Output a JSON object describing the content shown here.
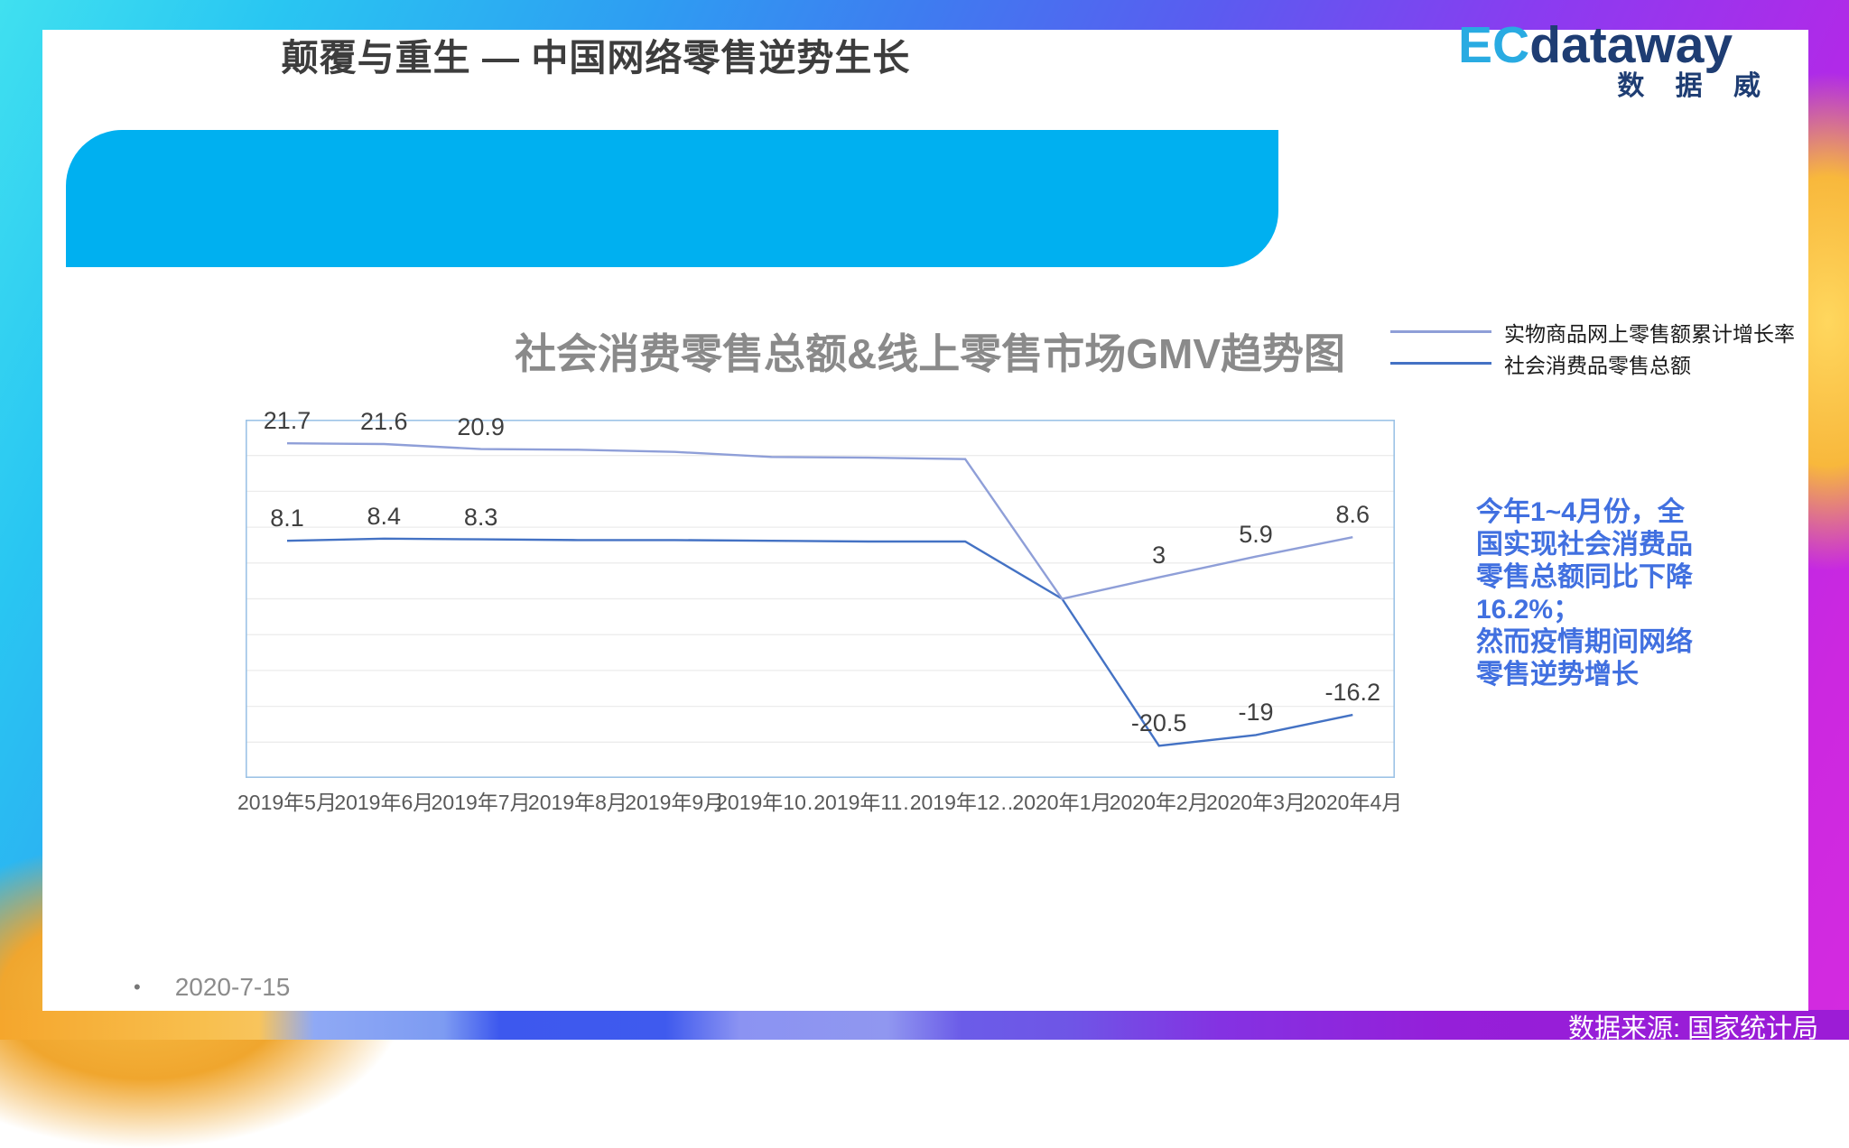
{
  "slide": {
    "title": "颠覆与重生 — 中国网络零售逆势生长",
    "date_bullet": "•",
    "date": "2020-7-15",
    "source": "数据来源: 国家统计局"
  },
  "logo": {
    "ec": "EC",
    "dataway": "dataway",
    "cn": "数 据 威"
  },
  "annotation": {
    "lines": [
      "今年1~4月份，全",
      "国实现社会消费品",
      "零售总额同比下降",
      "16.2%；",
      "然而疫情期间网络",
      "零售逆势增长"
    ]
  },
  "colors": {
    "banner": "#00b0f0",
    "annotation_text": "#4170e0",
    "logo_ec": "#29abe2",
    "logo_navy": "#1e3d73",
    "chart_border": "#9dc3e6",
    "gridline": "#ececec"
  },
  "chart_data": {
    "type": "line",
    "title": "社会消费零售总额&线上零售市场GMV趋势图",
    "categories": [
      "2019年5月",
      "2019年6月",
      "2019年7月",
      "2019年8月",
      "2019年9月",
      "2019年10…",
      "2019年11…",
      "2019年12…",
      "2020年1月",
      "2020年2月",
      "2020年3月",
      "2020年4月"
    ],
    "series": [
      {
        "name": "社会消费品零售总额",
        "color": "#4472c4",
        "values": [
          8.1,
          8.4,
          8.3,
          8.2,
          8.2,
          8.1,
          8.0,
          8.0,
          0,
          -20.5,
          -19,
          -16.2
        ],
        "labels": [
          "8.1",
          "8.4",
          "8.3",
          null,
          null,
          null,
          null,
          null,
          null,
          "-20.5",
          "-19",
          "-16.2"
        ]
      },
      {
        "name": "实物商品网上零售额累计增长率",
        "color": "#8f9fd8",
        "values": [
          21.7,
          21.6,
          20.9,
          20.8,
          20.5,
          19.8,
          19.7,
          19.5,
          0,
          3,
          5.9,
          8.6
        ],
        "labels": [
          "21.7",
          "21.6",
          "20.9",
          null,
          null,
          null,
          null,
          null,
          null,
          "3",
          "5.9",
          "8.6"
        ]
      }
    ],
    "ylim": [
      -25,
      25
    ],
    "grid_step": 5,
    "grid": true,
    "legend_position": "top-right"
  }
}
